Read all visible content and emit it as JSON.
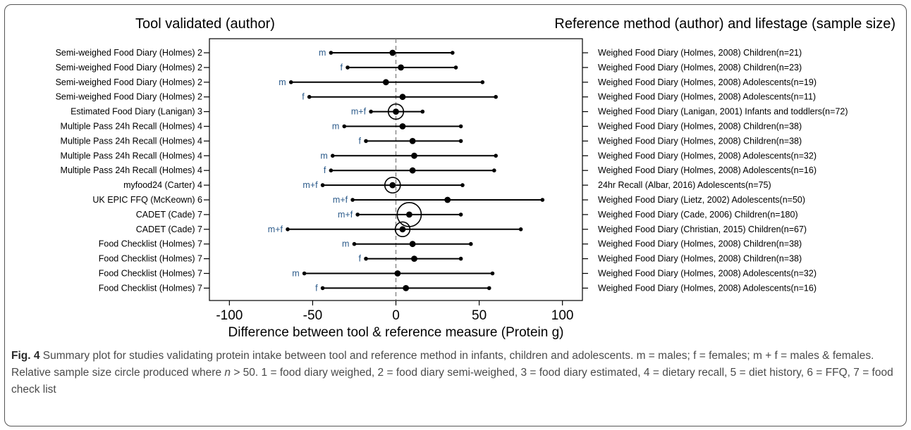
{
  "chart_data": {
    "type": "forest",
    "left_header": "Tool validated (author)",
    "right_header": "Reference method (author) and lifestage (sample size)",
    "xlabel": "Difference between tool & reference measure (Protein g)",
    "xlim": [
      -112,
      112
    ],
    "xticks": [
      -100,
      -50,
      0,
      50,
      100
    ],
    "reference_line": 0,
    "rows": [
      {
        "tool": "Semi-weighed Food Diary (Holmes)",
        "code": "2",
        "sex": "m",
        "mean": -2,
        "lower": -39,
        "upper": 34,
        "reference": "Weighed Food Diary (Holmes, 2008) Children(n=21)",
        "n": 21
      },
      {
        "tool": "Semi-weighed Food Diary (Holmes)",
        "code": "2",
        "sex": "f",
        "mean": 3,
        "lower": -29,
        "upper": 36,
        "reference": "Weighed Food Diary (Holmes, 2008) Children(n=23)",
        "n": 23
      },
      {
        "tool": "Semi-weighed Food Diary (Holmes)",
        "code": "2",
        "sex": "m",
        "mean": -6,
        "lower": -63,
        "upper": 52,
        "reference": "Weighed Food Diary (Holmes, 2008) Adolescents(n=19)",
        "n": 19
      },
      {
        "tool": "Semi-weighed Food Diary (Holmes)",
        "code": "2",
        "sex": "f",
        "mean": 4,
        "lower": -52,
        "upper": 60,
        "reference": "Weighed Food Diary (Holmes, 2008) Adolescents(n=11)",
        "n": 11
      },
      {
        "tool": "Estimated Food Diary (Lanigan)",
        "code": "3",
        "sex": "m+f",
        "mean": 0,
        "lower": -15,
        "upper": 16,
        "reference": "Weighed Food Diary (Lanigan, 2001) Infants and toddlers(n=72)",
        "n": 72
      },
      {
        "tool": "Multiple Pass 24h Recall (Holmes)",
        "code": "4",
        "sex": "m",
        "mean": 4,
        "lower": -31,
        "upper": 39,
        "reference": "Weighed Food Diary (Holmes, 2008) Children(n=38)",
        "n": 38
      },
      {
        "tool": "Multiple Pass 24h Recall (Holmes)",
        "code": "4",
        "sex": "f",
        "mean": 10,
        "lower": -18,
        "upper": 39,
        "reference": "Weighed Food Diary (Holmes, 2008) Children(n=38)",
        "n": 38
      },
      {
        "tool": "Multiple Pass 24h Recall (Holmes)",
        "code": "4",
        "sex": "m",
        "mean": 11,
        "lower": -38,
        "upper": 60,
        "reference": "Weighed Food Diary (Holmes, 2008) Adolescents(n=32)",
        "n": 32
      },
      {
        "tool": "Multiple Pass 24h Recall (Holmes)",
        "code": "4",
        "sex": "f",
        "mean": 10,
        "lower": -39,
        "upper": 59,
        "reference": "Weighed Food Diary (Holmes, 2008) Adolescents(n=16)",
        "n": 16
      },
      {
        "tool": "myfood24 (Carter)",
        "code": "4",
        "sex": "m+f",
        "mean": -2,
        "lower": -44,
        "upper": 40,
        "reference": "24hr Recall (Albar, 2016) Adolescents(n=75)",
        "n": 75
      },
      {
        "tool": "UK EPIC FFQ (McKeown)",
        "code": "6",
        "sex": "m+f",
        "mean": 31,
        "lower": -26,
        "upper": 88,
        "reference": "Weighed Food Diary (Lietz, 2002) Adolescents(n=50)",
        "n": 50
      },
      {
        "tool": "CADET (Cade)",
        "code": "7",
        "sex": "m+f",
        "mean": 8,
        "lower": -23,
        "upper": 39,
        "reference": "Weighed Food Diary (Cade, 2006) Children(n=180)",
        "n": 180
      },
      {
        "tool": "CADET (Cade)",
        "code": "7",
        "sex": "m+f",
        "mean": 4,
        "lower": -65,
        "upper": 75,
        "reference": "Weighed Food Diary (Christian, 2015) Children(n=67)",
        "n": 67
      },
      {
        "tool": "Food Checklist (Holmes)",
        "code": "7",
        "sex": "m",
        "mean": 10,
        "lower": -25,
        "upper": 45,
        "reference": "Weighed Food Diary (Holmes, 2008) Children(n=38)",
        "n": 38
      },
      {
        "tool": "Food Checklist (Holmes)",
        "code": "7",
        "sex": "f",
        "mean": 11,
        "lower": -18,
        "upper": 39,
        "reference": "Weighed Food Diary (Holmes, 2008) Children(n=38)",
        "n": 38
      },
      {
        "tool": "Food Checklist (Holmes)",
        "code": "7",
        "sex": "m",
        "mean": 1,
        "lower": -55,
        "upper": 58,
        "reference": "Weighed Food Diary (Holmes, 2008) Adolescents(n=32)",
        "n": 32
      },
      {
        "tool": "Food Checklist (Holmes)",
        "code": "7",
        "sex": "f",
        "mean": 6,
        "lower": -44,
        "upper": 56,
        "reference": "Weighed Food Diary (Holmes, 2008) Adolescents(n=16)",
        "n": 16
      }
    ],
    "colors": {
      "line": "#000000",
      "sex_label": "#2b5a8a",
      "zero_line": "#777777"
    }
  },
  "caption": {
    "fig_label": "Fig. 4",
    "text_a": " Summary plot for studies validating protein intake between tool and reference method in infants, children and adolescents. m = males; f = females; m + f = males & females. Relative sample size circle produced where ",
    "n_symbol": "n",
    "text_b": " > 50. 1 = food diary weighed, 2 = food diary semi-weighed, 3 = food diary estimated, 4 = dietary recall, 5 = diet history, 6 = FFQ, 7 = food check list"
  }
}
